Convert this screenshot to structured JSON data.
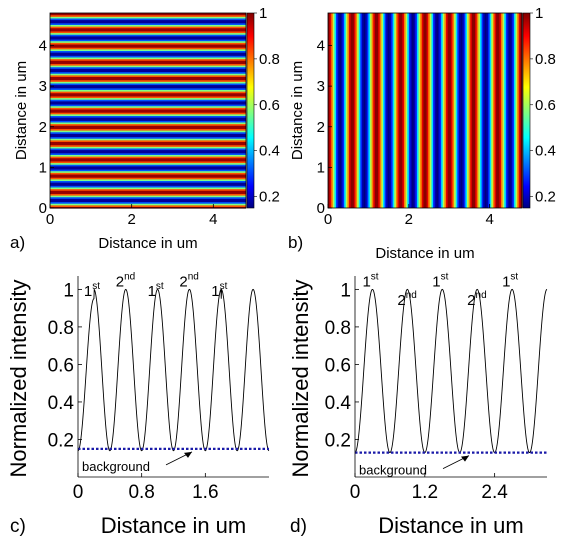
{
  "chart_data": [
    {
      "type": "heatmap",
      "panel_label": "a)",
      "pattern": "horizontal-stripes",
      "stripe_period_um": 0.4,
      "xlabel": "Distance in um",
      "ylabel": "Distance in um",
      "xlim": [
        0,
        4.8
      ],
      "ylim": [
        0,
        4.8
      ],
      "x_ticks": [
        0,
        2,
        4
      ],
      "y_ticks": [
        0,
        1,
        2,
        3,
        4
      ],
      "colorbar": {
        "range": [
          0.15,
          1
        ],
        "ticks": [
          0.2,
          0.4,
          0.6,
          0.8,
          1
        ],
        "colormap": "jet"
      }
    },
    {
      "type": "heatmap",
      "panel_label": "b)",
      "pattern": "vertical-stripes",
      "stripe_period_um": 0.6,
      "xlabel": "Distance in um",
      "ylabel": "Distance in um",
      "xlim": [
        0,
        4.8
      ],
      "ylim": [
        0,
        4.8
      ],
      "x_ticks": [
        0,
        2,
        4
      ],
      "y_ticks": [
        0,
        1,
        2,
        3,
        4
      ],
      "colorbar": {
        "range": [
          0.15,
          1
        ],
        "ticks": [
          0.2,
          0.4,
          0.6,
          0.8,
          1
        ],
        "colormap": "jet"
      }
    },
    {
      "type": "line",
      "panel_label": "c)",
      "xlabel": "Distance in um",
      "ylabel": "Normalized intensity",
      "xlim": [
        0,
        2.4
      ],
      "ylim": [
        0,
        1.05
      ],
      "x_ticks": [
        0,
        0.8,
        1.6
      ],
      "x_tick_labels": [
        "0",
        "0.8",
        "1.6"
      ],
      "y_ticks": [
        0.2,
        0.4,
        0.6,
        0.8,
        1
      ],
      "y_tick_labels": [
        "0.2",
        "0.4",
        "0.6",
        "0.8",
        "1"
      ],
      "baseline": 0.14,
      "background_level": 0.15,
      "background_label": "background",
      "peaks": [
        {
          "x": 0.2,
          "y": 0.95,
          "order": "1",
          "suffix": "st"
        },
        {
          "x": 0.6,
          "y": 1.0,
          "order": "2",
          "suffix": "nd"
        },
        {
          "x": 1.0,
          "y": 0.95,
          "order": "1",
          "suffix": "st"
        },
        {
          "x": 1.4,
          "y": 1.0,
          "order": "2",
          "suffix": "nd"
        },
        {
          "x": 1.8,
          "y": 0.95,
          "order": "1",
          "suffix": "st"
        },
        {
          "x": 2.2,
          "y": 1.0,
          "order": "",
          "suffix": ""
        }
      ]
    },
    {
      "type": "line",
      "panel_label": "d)",
      "xlabel": "Distance in um",
      "ylabel": "Normalized intensity",
      "xlim": [
        0,
        3.3
      ],
      "ylim": [
        0,
        1.05
      ],
      "x_ticks": [
        0,
        1.2,
        2.4
      ],
      "x_tick_labels": [
        "0",
        "1.2",
        "2.4"
      ],
      "y_ticks": [
        0.2,
        0.4,
        0.6,
        0.8,
        1
      ],
      "y_tick_labels": [
        "0.2",
        "0.4",
        "0.6",
        "0.8",
        "1"
      ],
      "baseline": 0.13,
      "background_level": 0.13,
      "background_label": "background",
      "peaks": [
        {
          "x": 0.3,
          "y": 1.0,
          "order": "1",
          "suffix": "st"
        },
        {
          "x": 0.9,
          "y": 0.9,
          "order": "2",
          "suffix": "nd"
        },
        {
          "x": 1.5,
          "y": 1.0,
          "order": "1",
          "suffix": "st"
        },
        {
          "x": 2.1,
          "y": 0.9,
          "order": "2",
          "suffix": "nd"
        },
        {
          "x": 2.7,
          "y": 1.0,
          "order": "1",
          "suffix": "st"
        },
        {
          "x": 3.3,
          "y": 0.9,
          "order": "",
          "suffix": ""
        }
      ]
    }
  ]
}
